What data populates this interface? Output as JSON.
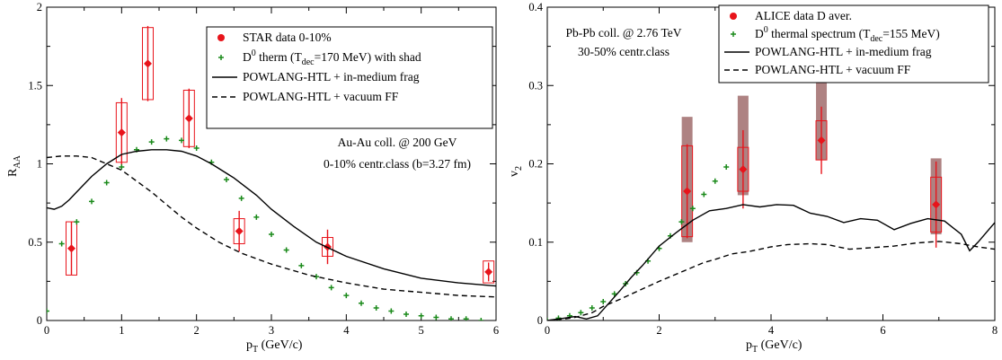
{
  "chart_data": [
    {
      "type": "scatter",
      "panel": "left",
      "xlabel": {
        "main": "p",
        "sub": "T",
        "rest": " (GeV/c)"
      },
      "ylabel": {
        "main": "R",
        "sub": "AA"
      },
      "xlim": [
        0,
        6
      ],
      "ylim": [
        0,
        2
      ],
      "xticks": [
        0,
        1,
        2,
        3,
        4,
        5,
        6
      ],
      "yticks": [
        0,
        0.5,
        1,
        1.5,
        2
      ],
      "ytick_labels": [
        "0",
        "0.5",
        "1",
        "1.5",
        "2"
      ],
      "legend_position": "top-right",
      "annotations": [
        "Au-Au coll. @ 200 GeV",
        "0-10% centr.class (b=3.27 fm)"
      ],
      "series": [
        {
          "name": "STAR data 0-10%",
          "kind": "data",
          "color": "#e8141b",
          "x": [
            0.33,
            1.0,
            1.35,
            1.9,
            2.57,
            3.75,
            5.9
          ],
          "y": [
            0.46,
            1.2,
            1.64,
            1.29,
            0.57,
            0.47,
            0.31
          ],
          "err": [
            0.17,
            0.22,
            0.24,
            0.19,
            0.13,
            0.11,
            0.06
          ],
          "sys": [
            0.17,
            0.19,
            0.23,
            0.18,
            0.08,
            0.06,
            0.07
          ]
        },
        {
          "name_parts": [
            "D",
            "0",
            " therm (T",
            "dec",
            "=170 MeV) with shad"
          ],
          "kind": "points",
          "color": "#1a8a1a",
          "x": [
            0.0,
            0.2,
            0.4,
            0.6,
            0.8,
            1.0,
            1.2,
            1.4,
            1.6,
            1.8,
            2.0,
            2.2,
            2.4,
            2.6,
            2.8,
            3.0,
            3.2,
            3.4,
            3.6,
            3.8,
            4.0,
            4.2,
            4.4,
            4.6,
            4.8,
            5.0,
            5.2,
            5.4,
            5.6,
            5.8
          ],
          "y": [
            0.06,
            0.49,
            0.63,
            0.76,
            0.88,
            0.98,
            1.09,
            1.14,
            1.16,
            1.15,
            1.1,
            1.01,
            0.9,
            0.78,
            0.66,
            0.55,
            0.45,
            0.35,
            0.28,
            0.21,
            0.16,
            0.11,
            0.08,
            0.06,
            0.04,
            0.03,
            0.02,
            0.01,
            0.01,
            0.0
          ]
        },
        {
          "name": "POWLANG-HTL + in-medium frag",
          "kind": "solid",
          "x": [
            0.0,
            0.1,
            0.2,
            0.3,
            0.4,
            0.6,
            0.8,
            1.0,
            1.2,
            1.4,
            1.6,
            1.8,
            2.0,
            2.2,
            2.5,
            2.8,
            3.0,
            3.3,
            3.6,
            4.0,
            4.5,
            5.0,
            5.5,
            6.0
          ],
          "y": [
            0.72,
            0.71,
            0.73,
            0.77,
            0.82,
            0.92,
            1.0,
            1.06,
            1.08,
            1.09,
            1.09,
            1.08,
            1.05,
            1.0,
            0.91,
            0.8,
            0.71,
            0.6,
            0.5,
            0.41,
            0.33,
            0.27,
            0.24,
            0.22
          ]
        },
        {
          "name": "POWLANG-HTL + vacuum FF",
          "kind": "dashed",
          "x": [
            0.0,
            0.2,
            0.4,
            0.6,
            0.8,
            1.0,
            1.2,
            1.4,
            1.6,
            1.8,
            2.0,
            2.3,
            2.6,
            3.0,
            3.5,
            4.0,
            4.5,
            5.0,
            5.5,
            6.0
          ],
          "y": [
            1.04,
            1.05,
            1.05,
            1.04,
            1.0,
            0.96,
            0.89,
            0.82,
            0.74,
            0.66,
            0.59,
            0.5,
            0.43,
            0.36,
            0.29,
            0.24,
            0.2,
            0.18,
            0.16,
            0.15
          ]
        }
      ]
    },
    {
      "type": "scatter",
      "panel": "right",
      "xlabel": {
        "main": "p",
        "sub": "T",
        "rest": " (GeV/c)"
      },
      "ylabel": {
        "main": "v",
        "sub": "2"
      },
      "xlim": [
        0,
        8
      ],
      "ylim": [
        0,
        0.4
      ],
      "xticks": [
        0,
        2,
        4,
        6,
        8
      ],
      "yticks": [
        0,
        0.1,
        0.2,
        0.3,
        0.4
      ],
      "ytick_labels": [
        "0",
        "0.1",
        "0.2",
        "0.3",
        "0.4"
      ],
      "legend_position": "top-right",
      "annotations": [
        "Pb-Pb coll. @ 2.76 TeV",
        "30-50% centr.class"
      ],
      "series": [
        {
          "name": "ALICE data D aver.",
          "kind": "data",
          "color": "#e8141b",
          "x": [
            2.5,
            3.5,
            4.9,
            6.95
          ],
          "y": [
            0.165,
            0.193,
            0.23,
            0.148
          ],
          "err": [
            0.06,
            0.05,
            0.043,
            0.055
          ],
          "sys": [
            0.058,
            0.028,
            0.025,
            0.035
          ],
          "sys_fd": [
            [
              0.1,
              0.26
            ],
            [
              0.16,
              0.287
            ],
            [
              0.205,
              0.315
            ],
            [
              0.11,
              0.207
            ]
          ]
        },
        {
          "name_parts": [
            "D",
            "0",
            " thermal spectrum (T",
            "dec",
            "=155 MeV)"
          ],
          "kind": "points",
          "color": "#1a8a1a",
          "x": [
            0.0,
            0.2,
            0.4,
            0.6,
            0.8,
            1.0,
            1.2,
            1.4,
            1.6,
            1.8,
            2.0,
            2.2,
            2.4,
            2.6,
            2.8,
            3.0,
            3.2
          ],
          "y": [
            0.0,
            0.003,
            0.006,
            0.01,
            0.016,
            0.024,
            0.034,
            0.047,
            0.061,
            0.076,
            0.092,
            0.108,
            0.126,
            0.143,
            0.161,
            0.178,
            0.196
          ]
        },
        {
          "name": "POWLANG-HTL + in-medium frag",
          "kind": "solid",
          "x": [
            0.0,
            0.3,
            0.5,
            0.7,
            0.9,
            1.1,
            1.3,
            1.5,
            1.7,
            2.0,
            2.3,
            2.6,
            2.9,
            3.2,
            3.5,
            3.8,
            4.1,
            4.4,
            4.7,
            5.0,
            5.3,
            5.6,
            5.9,
            6.2,
            6.5,
            6.8,
            7.1,
            7.4,
            7.55,
            7.7,
            8.0
          ],
          "y": [
            0.0,
            0.003,
            0.005,
            0.002,
            0.006,
            0.022,
            0.038,
            0.055,
            0.07,
            0.095,
            0.112,
            0.128,
            0.14,
            0.143,
            0.148,
            0.145,
            0.148,
            0.147,
            0.137,
            0.133,
            0.125,
            0.13,
            0.128,
            0.116,
            0.124,
            0.13,
            0.127,
            0.11,
            0.089,
            0.1,
            0.125
          ]
        },
        {
          "name": "POWLANG-HTL + vacuum FF",
          "kind": "dashed",
          "x": [
            0.0,
            0.3,
            0.5,
            0.8,
            1.0,
            1.3,
            1.6,
            2.0,
            2.4,
            2.8,
            3.0,
            3.3,
            3.6,
            4.0,
            4.3,
            4.7,
            5.0,
            5.4,
            5.8,
            6.2,
            6.6,
            7.0,
            7.4,
            7.7,
            8.0
          ],
          "y": [
            0.0,
            0.002,
            0.004,
            0.01,
            0.018,
            0.027,
            0.037,
            0.05,
            0.062,
            0.074,
            0.078,
            0.085,
            0.088,
            0.094,
            0.097,
            0.098,
            0.097,
            0.091,
            0.093,
            0.095,
            0.099,
            0.101,
            0.098,
            0.094,
            0.091
          ]
        }
      ]
    }
  ]
}
